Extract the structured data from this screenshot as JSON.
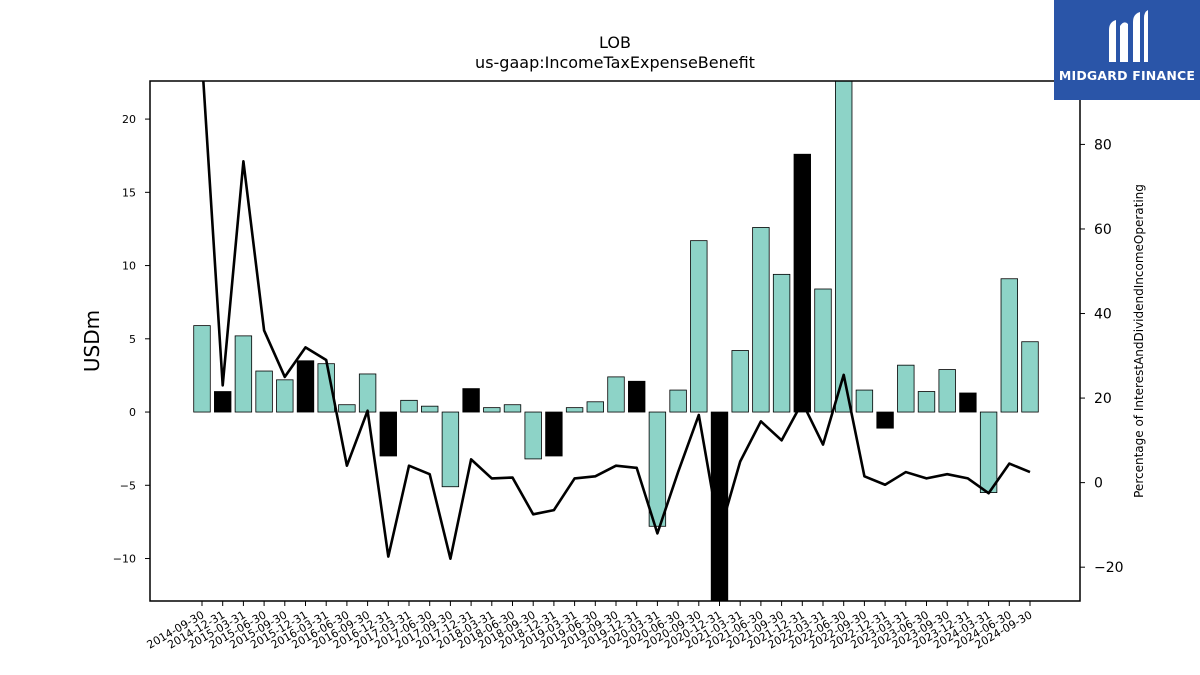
{
  "chart_data": {
    "type": "bar",
    "title": "LOB",
    "subtitle": "us-gaap:IncomeTaxExpenseBenefit",
    "ylabel": "USDm",
    "y2label": "Percentage of InterestAndDividendIncomeOperating",
    "ylim": [
      -12.9,
      22.6
    ],
    "y2lim": [
      -28,
      95
    ],
    "yticks": [
      -10,
      -5,
      0,
      5,
      10,
      15,
      20
    ],
    "y2ticks": [
      -20,
      0,
      20,
      40,
      60,
      80
    ],
    "categories": [
      "2014-09-30",
      "2014-12-31",
      "2015-03-31",
      "2015-06-30",
      "2015-09-30",
      "2015-12-31",
      "2016-03-31",
      "2016-06-30",
      "2016-09-30",
      "2016-12-31",
      "2017-03-31",
      "2017-06-30",
      "2017-09-30",
      "2017-12-31",
      "2018-03-31",
      "2018-06-30",
      "2018-09-30",
      "2018-12-31",
      "2019-03-31",
      "2019-06-30",
      "2019-09-30",
      "2019-12-31",
      "2020-03-31",
      "2020-06-30",
      "2020-09-30",
      "2020-12-31",
      "2021-03-31",
      "2021-06-30",
      "2021-09-30",
      "2021-12-31",
      "2022-03-31",
      "2022-06-30",
      "2022-09-30",
      "2022-12-31",
      "2023-03-31",
      "2023-06-30",
      "2023-09-30",
      "2023-12-31",
      "2024-03-31",
      "2024-06-30",
      "2024-09-30"
    ],
    "series": [
      {
        "type": "bar",
        "values": [
          5.9,
          1.4,
          5.2,
          2.8,
          2.2,
          3.5,
          3.3,
          0.5,
          2.6,
          -3.0,
          0.8,
          0.4,
          -5.1,
          1.6,
          0.3,
          0.5,
          -3.2,
          -3.0,
          0.3,
          0.7,
          2.4,
          2.1,
          -7.8,
          1.5,
          11.7,
          -13.0,
          4.2,
          12.6,
          9.4,
          17.6,
          8.4,
          23.0,
          1.5,
          -1.1,
          3.2,
          1.4,
          2.9,
          1.3,
          -5.5,
          9.1,
          4.8
        ],
        "highlighted": [
          false,
          true,
          false,
          false,
          false,
          true,
          false,
          false,
          false,
          true,
          false,
          false,
          false,
          true,
          false,
          false,
          false,
          true,
          false,
          false,
          false,
          true,
          false,
          false,
          false,
          true,
          false,
          false,
          false,
          true,
          false,
          false,
          false,
          true,
          false,
          false,
          false,
          true,
          false,
          false,
          false
        ],
        "color": "#8dd3c7",
        "highlight_color": "#000000"
      },
      {
        "type": "line",
        "axis": "right",
        "values": [
          100,
          23,
          76,
          36,
          25,
          32,
          29,
          4,
          17,
          -17.5,
          4,
          2,
          -18,
          5.5,
          1,
          1.2,
          -7.5,
          -6.5,
          1,
          1.5,
          4,
          3.5,
          -12,
          2.5,
          16,
          -12,
          5,
          14.5,
          10,
          19,
          9,
          25.5,
          1.5,
          -0.5,
          2.5,
          1,
          2,
          1,
          -2.5,
          4.5,
          2.5
        ],
        "color": "#000000"
      }
    ]
  },
  "logo": {
    "text": "MIDGARD FINANCE"
  }
}
